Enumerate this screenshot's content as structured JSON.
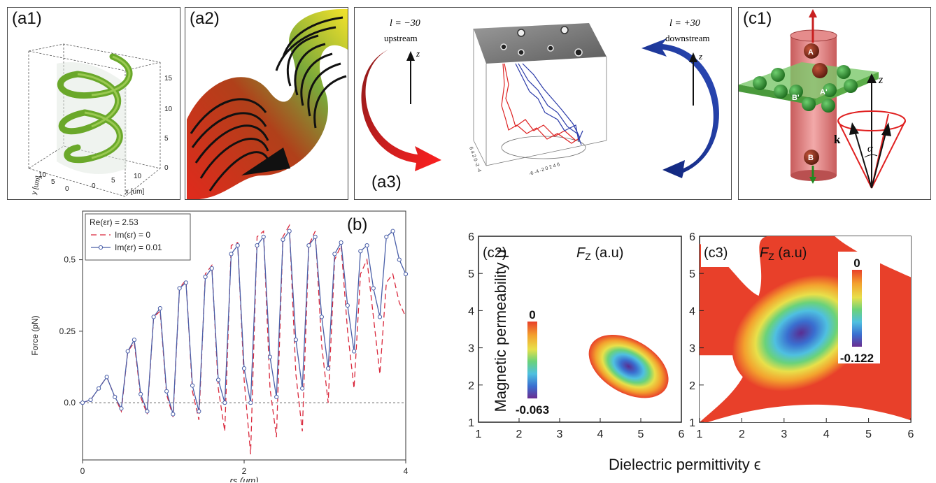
{
  "panels": {
    "a1": {
      "label": "(a1)",
      "z_ticks": [
        "0",
        "5",
        "10",
        "15"
      ],
      "x_ticks": [
        "0",
        "5",
        "10"
      ],
      "y_ticks": [
        "0",
        "5",
        "10"
      ],
      "x_axis": "x [um]",
      "y_axis": "y [um]"
    },
    "a2": {
      "label": "(a2)"
    },
    "a3": {
      "label": "(a3)",
      "left_l": "l = −30",
      "left_dir": "upstream",
      "right_l": "l = +30",
      "right_dir": "downstream",
      "z": "z"
    },
    "c1": {
      "label": "(c1)",
      "A": "A",
      "A_prime": "A'",
      "B": "B",
      "B_prime": "B'",
      "z": "z",
      "k": "k",
      "alpha": "α"
    },
    "b": {
      "label": "(b)"
    },
    "c2": {
      "label": "(c2)",
      "title": "F",
      "title_sub": "Z",
      "title_unit": " (a.u)",
      "cb_max": "0",
      "cb_min": "-0.063"
    },
    "c3": {
      "label": "(c3)",
      "title": "F",
      "title_sub": "Z",
      "title_unit": " (a.u)",
      "cb_max": "0",
      "cb_min": "-0.122"
    },
    "shared": {
      "ylabel": "Magnetic permeability μ",
      "xlabel": "Dielectric permittivity ϵ"
    }
  },
  "chart_data": [
    {
      "type": "line",
      "legend_title": "Re(εr) = 2.53",
      "xlabel": "rs (μm)",
      "ylabel": "Force (pN)",
      "xlim": [
        0,
        4
      ],
      "ylim": [
        -0.2,
        0.67
      ],
      "x_ticks": [
        "0",
        "2",
        "4"
      ],
      "y_ticks": [
        "0.0",
        "0.25",
        "0.5"
      ],
      "legend_placement": "top-left",
      "series": [
        {
          "name": "Im(εr) = 0",
          "color": "#d9283c",
          "style": "dashed",
          "x": [
            0,
            0.1,
            0.2,
            0.3,
            0.4,
            0.48,
            0.56,
            0.64,
            0.72,
            0.8,
            0.88,
            0.96,
            1.04,
            1.12,
            1.2,
            1.28,
            1.36,
            1.44,
            1.52,
            1.6,
            1.68,
            1.76,
            1.84,
            1.92,
            2.0,
            2.08,
            2.16,
            2.24,
            2.32,
            2.4,
            2.48,
            2.56,
            2.64,
            2.72,
            2.8,
            2.88,
            2.96,
            3.04,
            3.12,
            3.2,
            3.28,
            3.36,
            3.44,
            3.52,
            3.6,
            3.68,
            3.76,
            3.84,
            3.92,
            4.0
          ],
          "y": [
            0,
            0.01,
            0.05,
            0.09,
            0.02,
            -0.03,
            0.18,
            0.21,
            0.02,
            -0.04,
            0.3,
            0.32,
            0.03,
            -0.05,
            0.4,
            0.43,
            0.04,
            -0.06,
            0.45,
            0.48,
            0.05,
            -0.1,
            0.55,
            0.56,
            0.08,
            -0.18,
            0.58,
            0.6,
            0.05,
            -0.12,
            0.58,
            0.62,
            0.1,
            -0.1,
            0.55,
            0.6,
            0.2,
            0.0,
            0.5,
            0.55,
            0.25,
            0.05,
            0.45,
            0.5,
            0.3,
            0.1,
            0.42,
            0.45,
            0.35,
            0.3
          ]
        },
        {
          "name": "Im(εr) = 0.01",
          "color": "#4a5fa8",
          "style": "solid-circles",
          "x": [
            0,
            0.1,
            0.2,
            0.3,
            0.4,
            0.48,
            0.56,
            0.64,
            0.72,
            0.8,
            0.88,
            0.96,
            1.04,
            1.12,
            1.2,
            1.28,
            1.36,
            1.44,
            1.52,
            1.6,
            1.68,
            1.76,
            1.84,
            1.92,
            2.0,
            2.08,
            2.16,
            2.24,
            2.32,
            2.4,
            2.48,
            2.56,
            2.64,
            2.72,
            2.8,
            2.88,
            2.96,
            3.04,
            3.12,
            3.2,
            3.28,
            3.36,
            3.44,
            3.52,
            3.6,
            3.68,
            3.76,
            3.84,
            3.92,
            4.0
          ],
          "y": [
            0,
            0.01,
            0.05,
            0.09,
            0.02,
            -0.02,
            0.18,
            0.22,
            0.03,
            -0.03,
            0.3,
            0.33,
            0.04,
            -0.04,
            0.4,
            0.42,
            0.06,
            -0.03,
            0.44,
            0.47,
            0.08,
            0.0,
            0.52,
            0.55,
            0.12,
            0.0,
            0.55,
            0.58,
            0.16,
            0.02,
            0.57,
            0.6,
            0.22,
            0.05,
            0.55,
            0.58,
            0.3,
            0.12,
            0.52,
            0.56,
            0.34,
            0.18,
            0.53,
            0.55,
            0.4,
            0.3,
            0.58,
            0.6,
            0.5,
            0.45
          ]
        }
      ]
    },
    {
      "type": "heatmap",
      "panel": "c2",
      "xlabel": "Dielectric permittivity ϵ",
      "ylabel": "Magnetic permeability μ",
      "xlim": [
        1,
        6
      ],
      "ylim": [
        1,
        6
      ],
      "x_ticks": [
        "1",
        "2",
        "3",
        "4",
        "5",
        "6"
      ],
      "y_ticks": [
        "1",
        "2",
        "3",
        "4",
        "5",
        "6"
      ],
      "colorbar": {
        "max": 0,
        "min": -0.063
      },
      "minimum_at": [
        4.7,
        2.5
      ]
    },
    {
      "type": "heatmap",
      "panel": "c3",
      "xlabel": "Dielectric permittivity ϵ",
      "ylabel": "Magnetic permeability μ",
      "xlim": [
        1,
        6
      ],
      "ylim": [
        1,
        6
      ],
      "x_ticks": [
        "1",
        "2",
        "3",
        "4",
        "5",
        "6"
      ],
      "y_ticks": [
        "1",
        "2",
        "3",
        "4",
        "5",
        "6"
      ],
      "colorbar": {
        "max": 0,
        "min": -0.122
      },
      "minimum_at": [
        3.4,
        3.4
      ]
    }
  ]
}
